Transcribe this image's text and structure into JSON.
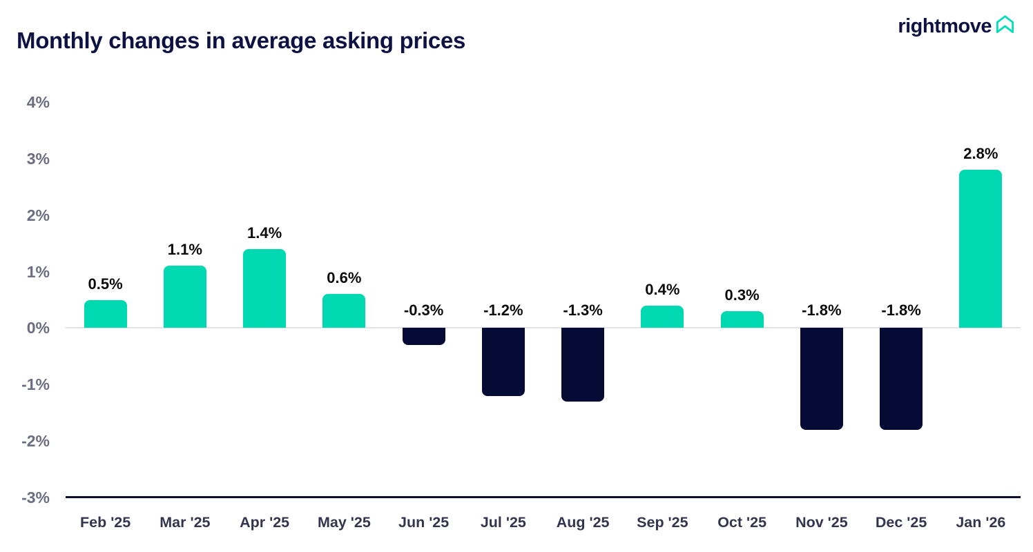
{
  "header": {
    "title": "Monthly changes in average asking prices",
    "logo_text": "rightmove",
    "logo_icon": "house-chevron-icon"
  },
  "colors": {
    "positive_bar": "#00D8B2",
    "negative_bar": "#060B35",
    "title_text": "#0E1243",
    "y_tick_text": "#6C6C82",
    "x_tick_text": "#34344E",
    "value_label_text": "#0B0B0B",
    "zero_line": "#E3E3E6",
    "axis_line": "#0C0E33",
    "logo_teal": "#00DEB6"
  },
  "chart_data": {
    "type": "bar",
    "title": "Monthly changes in average asking prices",
    "categories": [
      "Feb '25",
      "Mar '25",
      "Apr '25",
      "May '25",
      "Jun '25",
      "Jul '25",
      "Aug '25",
      "Sep '25",
      "Oct '25",
      "Nov '25",
      "Dec '25",
      "Jan '26"
    ],
    "values": [
      0.5,
      1.1,
      1.4,
      0.6,
      -0.3,
      -1.2,
      -1.3,
      0.4,
      0.3,
      -1.8,
      -1.8,
      2.8
    ],
    "value_labels": [
      "0.5%",
      "1.1%",
      "1.4%",
      "0.6%",
      "-0.3%",
      "-1.2%",
      "-1.3%",
      "0.4%",
      "0.3%",
      "-1.8%",
      "-1.8%",
      "2.8%"
    ],
    "xlabel": "",
    "ylabel": "",
    "y_ticks": [
      "4%",
      "3%",
      "2%",
      "1%",
      "0%",
      "-1%",
      "-2%",
      "-3%"
    ],
    "ylim": [
      -3,
      4
    ],
    "grid": "zero-line-only",
    "legend": "none",
    "bar_color_rule": "positive values teal, negative values dark navy"
  }
}
